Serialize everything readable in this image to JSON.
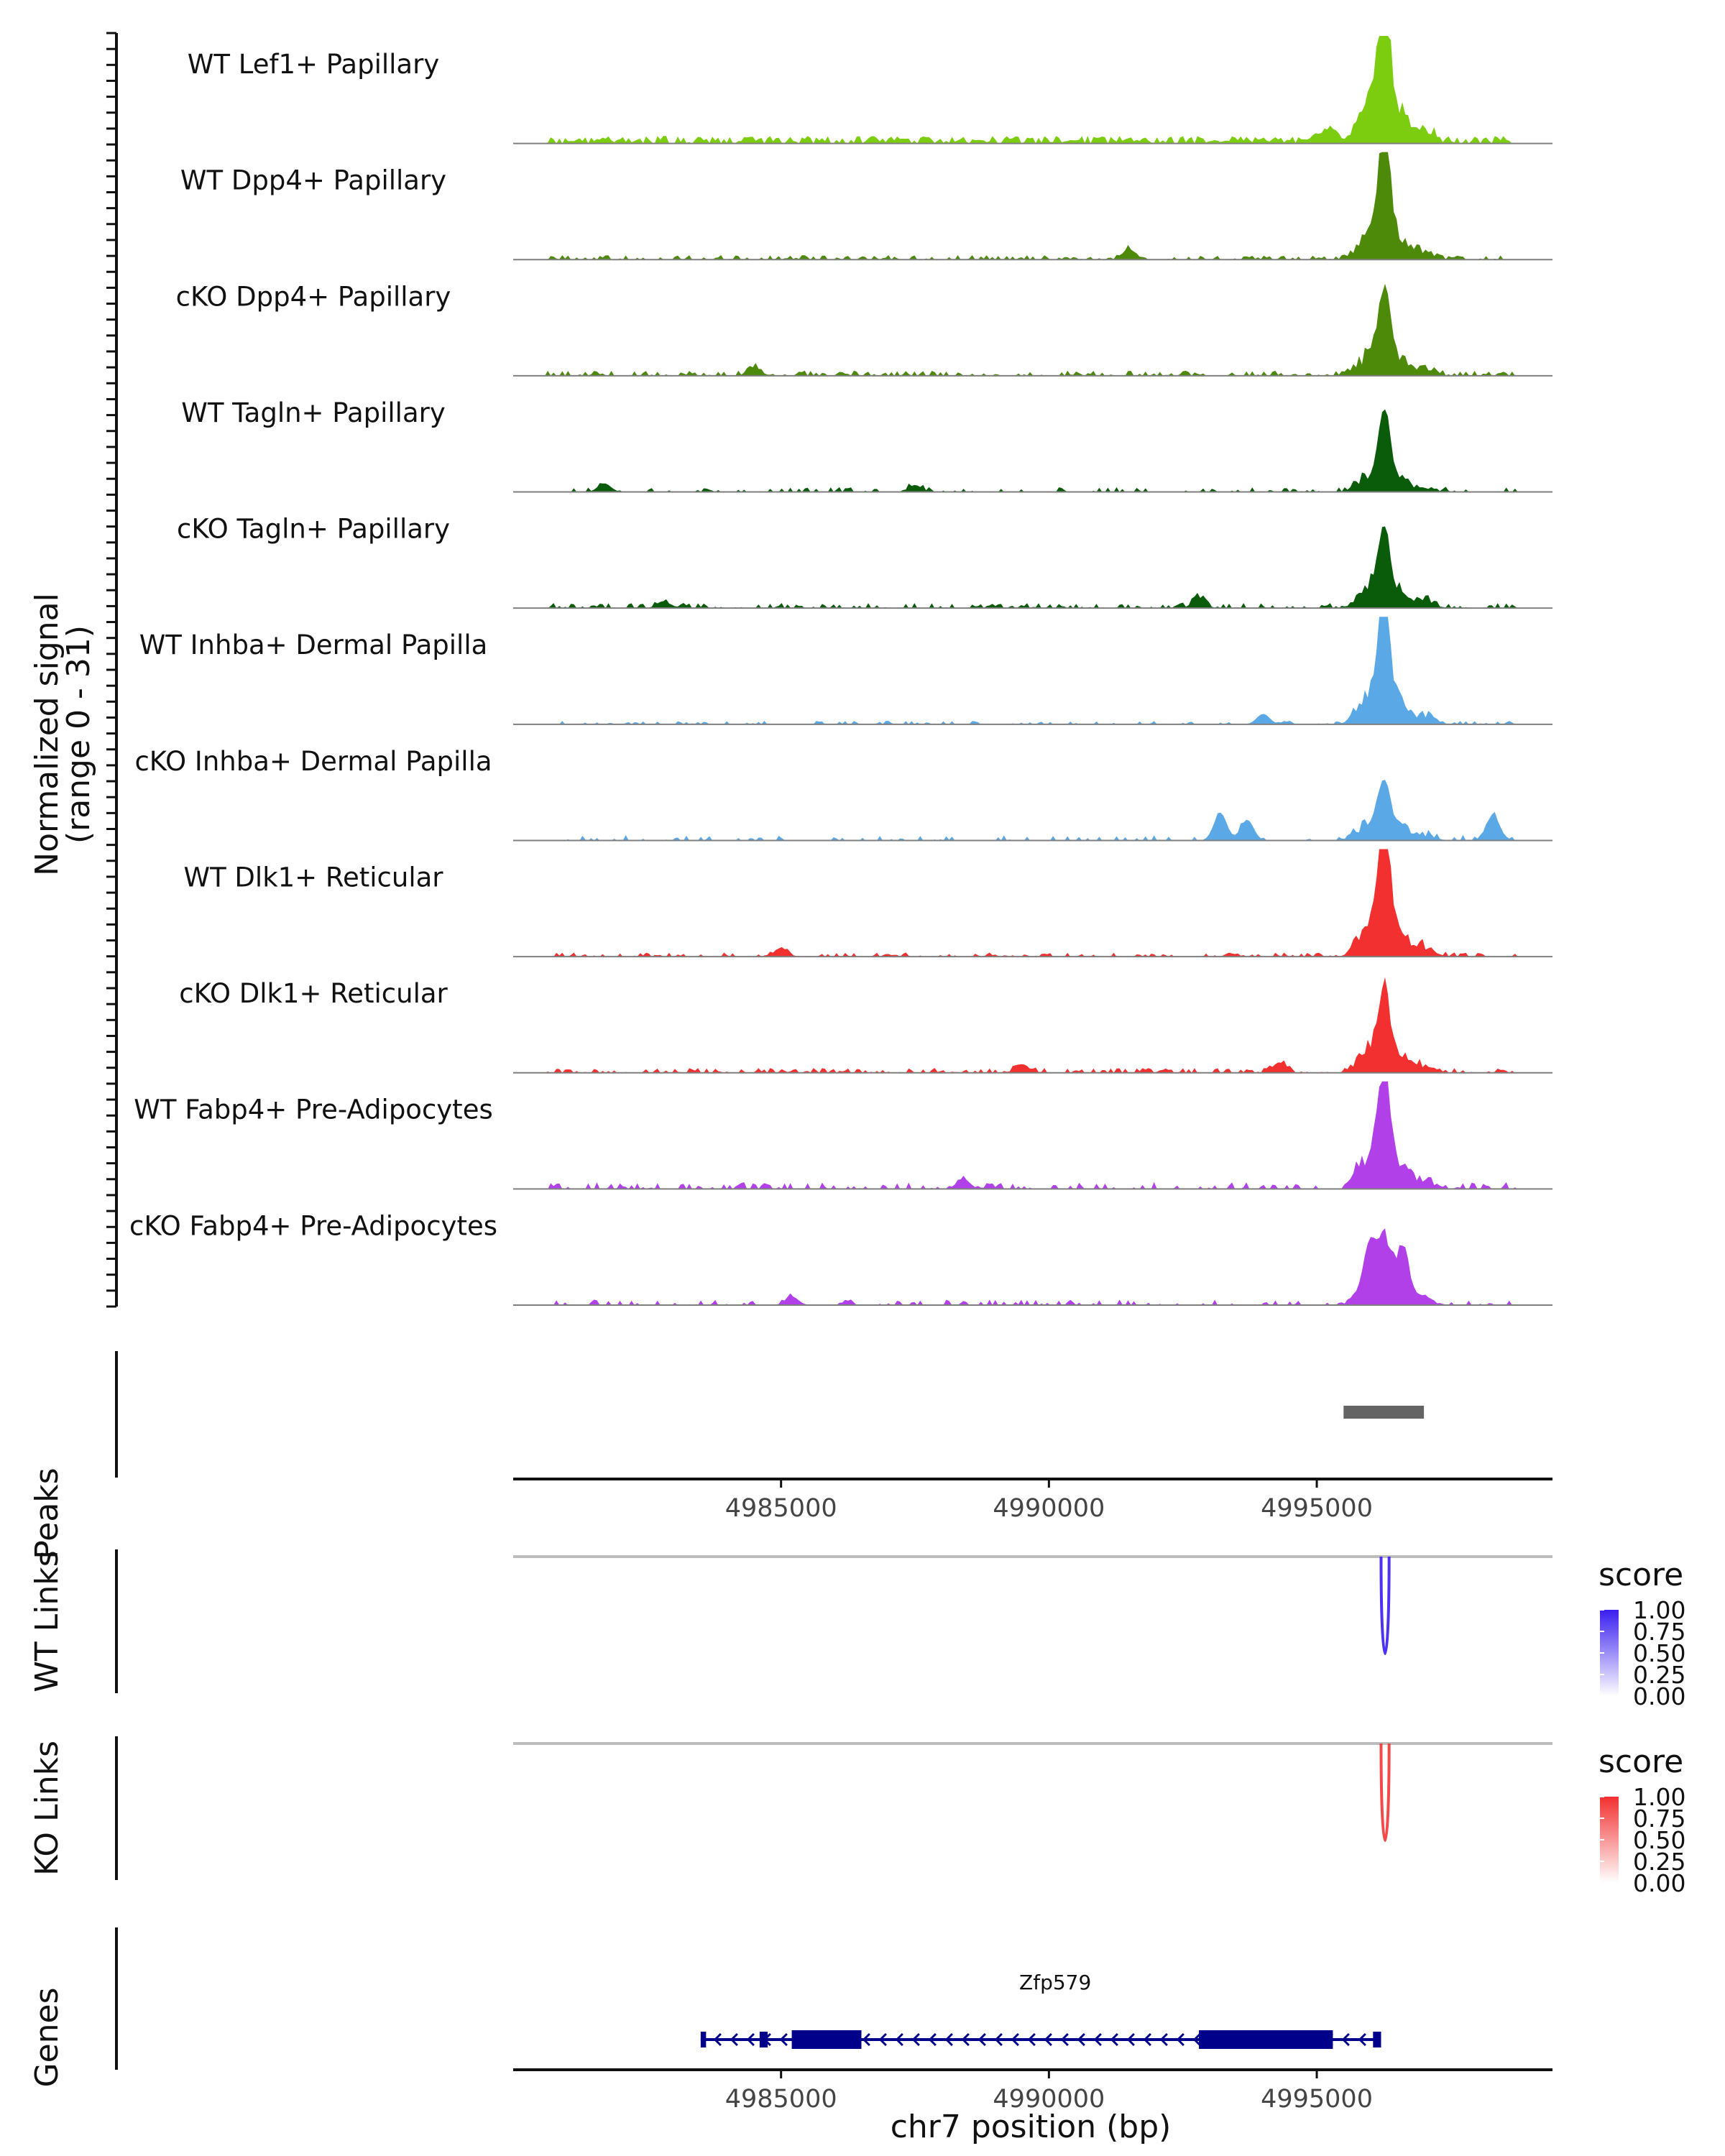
{
  "chart_data": {
    "type": "area",
    "title": "",
    "chromosome": "chr7",
    "x_range": [
      4980000,
      4999400
    ],
    "xlabel": "chr7 position (bp)",
    "x_ticks": [
      4985000,
      4990000,
      4995000
    ],
    "x_tick_labels": [
      "4985000",
      "4990000",
      "4995000"
    ],
    "coverage": {
      "ylabel_line1": "Normalized signal",
      "ylabel_line2": "(range 0 - 31)",
      "y_range": [
        0,
        31
      ],
      "tracks": [
        {
          "name": "WT Lef1+ Papillary",
          "color": "#7CCD0F",
          "peak_max": 31,
          "background": 2.2,
          "noise_density": 0.95,
          "cluster_scale": 1.0,
          "extra_peaks": [
            [
              4995200,
              4
            ]
          ]
        },
        {
          "name": "WT Dpp4+ Papillary",
          "color": "#4E8A0A",
          "peak_max": 31,
          "background": 1.3,
          "noise_density": 0.55,
          "cluster_scale": 0.7,
          "extra_peaks": [
            [
              4991500,
              3
            ]
          ]
        },
        {
          "name": "cKO Dpp4+ Papillary",
          "color": "#4E8A0A",
          "peak_max": 20,
          "background": 1.5,
          "noise_density": 0.6,
          "cluster_scale": 0.9,
          "extra_peaks": [
            [
              4984500,
              2.5
            ]
          ]
        },
        {
          "name": "WT Tagln+ Papillary",
          "color": "#0A5C0A",
          "peak_max": 19,
          "background": 1.4,
          "noise_density": 0.35,
          "cluster_scale": 0.7,
          "extra_peaks": [
            [
              4981700,
              2.5
            ],
            [
              4987500,
              2
            ]
          ]
        },
        {
          "name": "cKO Tagln+ Papillary",
          "color": "#0A5C0A",
          "peak_max": 18,
          "background": 1.5,
          "noise_density": 0.5,
          "cluster_scale": 1.0,
          "extra_peaks": [
            [
              4982800,
              2
            ],
            [
              4992800,
              3
            ]
          ]
        },
        {
          "name": "WT Inhba+ Dermal Papilla",
          "color": "#5AA8E6",
          "peak_max": 31,
          "background": 1.0,
          "noise_density": 0.3,
          "cluster_scale": 0.8,
          "extra_peaks": [
            [
              4994000,
              3
            ]
          ]
        },
        {
          "name": "cKO Inhba+ Dermal Papilla",
          "color": "#5AA8E6",
          "peak_max": 13,
          "background": 1.6,
          "noise_density": 0.3,
          "cluster_scale": 1.2,
          "extra_peaks": [
            [
              4993200,
              8
            ],
            [
              4993700,
              6
            ],
            [
              4998300,
              7
            ]
          ]
        },
        {
          "name": "WT Dlk1+ Reticular",
          "color": "#F2302F",
          "peak_max": 31,
          "background": 1.2,
          "noise_density": 0.45,
          "cluster_scale": 0.8,
          "extra_peaks": [
            [
              4985000,
              2.5
            ]
          ]
        },
        {
          "name": "cKO Dlk1+ Reticular",
          "color": "#F2302F",
          "peak_max": 19,
          "background": 1.4,
          "noise_density": 0.6,
          "cluster_scale": 1.0,
          "extra_peaks": [
            [
              4989500,
              2.5
            ],
            [
              4994300,
              3
            ]
          ]
        },
        {
          "name": "WT Fabp4+ Pre-Adipocytes",
          "color": "#B240E8",
          "peak_max": 31,
          "background": 2.0,
          "noise_density": 0.45,
          "cluster_scale": 0.8,
          "extra_peaks": [
            [
              4988400,
              3
            ]
          ]
        },
        {
          "name": "cKO Fabp4+ Pre-Adipocytes",
          "color": "#B240E8",
          "peak_max": 14,
          "background": 1.6,
          "noise_density": 0.3,
          "cluster_scale": 1.3,
          "extra_peaks": [
            [
              4996600,
              13
            ],
            [
              4996000,
              11
            ],
            [
              4985200,
              2.5
            ]
          ]
        }
      ]
    },
    "peaks": {
      "label": "Peaks",
      "color": "#646464",
      "regions": [
        [
          4995500,
          4997000
        ]
      ]
    },
    "links": [
      {
        "label": "WT Links",
        "anchor_line_color": "#BDBDBD",
        "legend_title": "score",
        "legend_ticks": [
          "1.00",
          "0.75",
          "0.50",
          "0.25",
          "0.00"
        ],
        "color_low": "#FFFFFF",
        "color_high": "#3A1EF0",
        "arcs": [
          {
            "start": 4996200,
            "end": 4996350,
            "score": 0.85
          }
        ]
      },
      {
        "label": "KO Links",
        "anchor_line_color": "#BDBDBD",
        "legend_title": "score",
        "legend_ticks": [
          "1.00",
          "0.75",
          "0.50",
          "0.25",
          "0.00"
        ],
        "color_low": "#FFFFFF",
        "color_high": "#F2302F",
        "arcs": [
          {
            "start": 4996200,
            "end": 4996350,
            "score": 0.8
          }
        ]
      }
    ],
    "genes": {
      "label": "Genes",
      "color": "#00008B",
      "items": [
        {
          "name": "Zfp579",
          "strand": "-",
          "start": 4983500,
          "end": 4996200,
          "exons": [
            [
              4983500,
              4983600
            ],
            [
              4984600,
              4984750
            ],
            [
              4985200,
              4986500
            ],
            [
              4992800,
              4995300
            ],
            [
              4996050,
              4996200
            ]
          ]
        }
      ]
    }
  }
}
